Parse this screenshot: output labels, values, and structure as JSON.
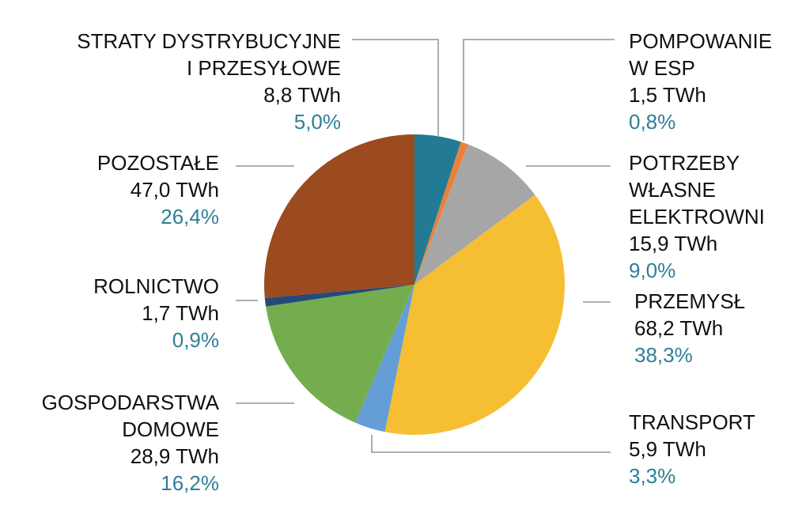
{
  "chart_data": {
    "type": "pie",
    "unit": "TWh",
    "slices": [
      {
        "key": "straty",
        "lines": [
          "STRATY DYSTRYBUCYJNE",
          "I PRZESYŁOWE"
        ],
        "value_text": "8,8 TWh",
        "value": 8.8,
        "pct_text": "5,0%",
        "percent": 5.0,
        "color": "#237a95"
      },
      {
        "key": "pompowanie",
        "lines": [
          "POMPOWANIE",
          "W ESP"
        ],
        "value_text": "1,5 TWh",
        "value": 1.5,
        "pct_text": "0,8%",
        "percent": 0.8,
        "color": "#e8823a"
      },
      {
        "key": "potrzeby",
        "lines": [
          "POTRZEBY",
          "WŁASNE",
          "ELEKTROWNI"
        ],
        "value_text": "15,9 TWh",
        "value": 15.9,
        "pct_text": "9,0%",
        "percent": 9.0,
        "color": "#a6a6a6"
      },
      {
        "key": "przemysl",
        "lines": [
          "PRZEMYSŁ"
        ],
        "value_text": "68,2 TWh",
        "value": 68.2,
        "pct_text": "38,3%",
        "percent": 38.3,
        "color": "#f6bf33"
      },
      {
        "key": "transport",
        "lines": [
          "TRANSPORT"
        ],
        "value_text": "5,9 TWh",
        "value": 5.9,
        "pct_text": "3,3%",
        "percent": 3.3,
        "color": "#659ed6"
      },
      {
        "key": "gospodarstwa",
        "lines": [
          "GOSPODARSTWA",
          "DOMOWE"
        ],
        "value_text": "28,9 TWh",
        "value": 28.9,
        "pct_text": "16,2%",
        "percent": 16.2,
        "color": "#74ad4e"
      },
      {
        "key": "rolnictwo",
        "lines": [
          "ROLNICTWO"
        ],
        "value_text": "1,7 TWh",
        "value": 1.7,
        "pct_text": "0,9%",
        "percent": 0.9,
        "color": "#234a78"
      },
      {
        "key": "pozostale",
        "lines": [
          "POZOSTAŁE"
        ],
        "value_text": "47,0 TWh",
        "value": 47.0,
        "pct_text": "26,4%",
        "percent": 26.4,
        "color": "#9c4a1f"
      }
    ],
    "start": "12 o'clock",
    "direction": "clockwise",
    "legend": "none"
  }
}
